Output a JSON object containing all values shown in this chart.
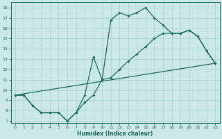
{
  "xlabel": "Humidex (Indice chaleur)",
  "bg_color": "#cce8e8",
  "grid_color": "#a8d0d0",
  "line_color": "#1a6b5a",
  "xlim": [
    -0.5,
    23.5
  ],
  "ylim": [
    6.8,
    18.5
  ],
  "xticks": [
    0,
    1,
    2,
    3,
    4,
    5,
    6,
    7,
    8,
    9,
    10,
    11,
    12,
    13,
    14,
    15,
    16,
    17,
    18,
    19,
    20,
    21,
    22,
    23
  ],
  "yticks": [
    7,
    8,
    9,
    10,
    11,
    12,
    13,
    14,
    15,
    16,
    17,
    18
  ],
  "line1_x": [
    0,
    1,
    2,
    3,
    4,
    5,
    6,
    7,
    8,
    9,
    10,
    11,
    12,
    13,
    14,
    15,
    16,
    17,
    18,
    19,
    20,
    21,
    22,
    23
  ],
  "line1_y": [
    9.5,
    9.5,
    8.5,
    7.8,
    7.8,
    7.8,
    7.0,
    7.8,
    9.5,
    13.2,
    11.0,
    16.8,
    17.5,
    17.2,
    17.5,
    18.0,
    17.0,
    16.3,
    15.5,
    15.5,
    15.8,
    15.2,
    13.8,
    12.6
  ],
  "line2_x": [
    0,
    1,
    2,
    3,
    4,
    5,
    6,
    7,
    8,
    9,
    10,
    11,
    12,
    13,
    14,
    15,
    16,
    17,
    18,
    19,
    20,
    21,
    22,
    23
  ],
  "line2_y": [
    9.5,
    9.5,
    8.5,
    7.8,
    7.8,
    7.8,
    7.0,
    7.8,
    8.8,
    9.5,
    11.0,
    11.2,
    12.0,
    12.8,
    13.5,
    14.2,
    15.0,
    15.5,
    15.5,
    15.5,
    15.8,
    15.2,
    13.8,
    12.6
  ],
  "line3_x": [
    0,
    23
  ],
  "line3_y": [
    9.5,
    12.6
  ]
}
